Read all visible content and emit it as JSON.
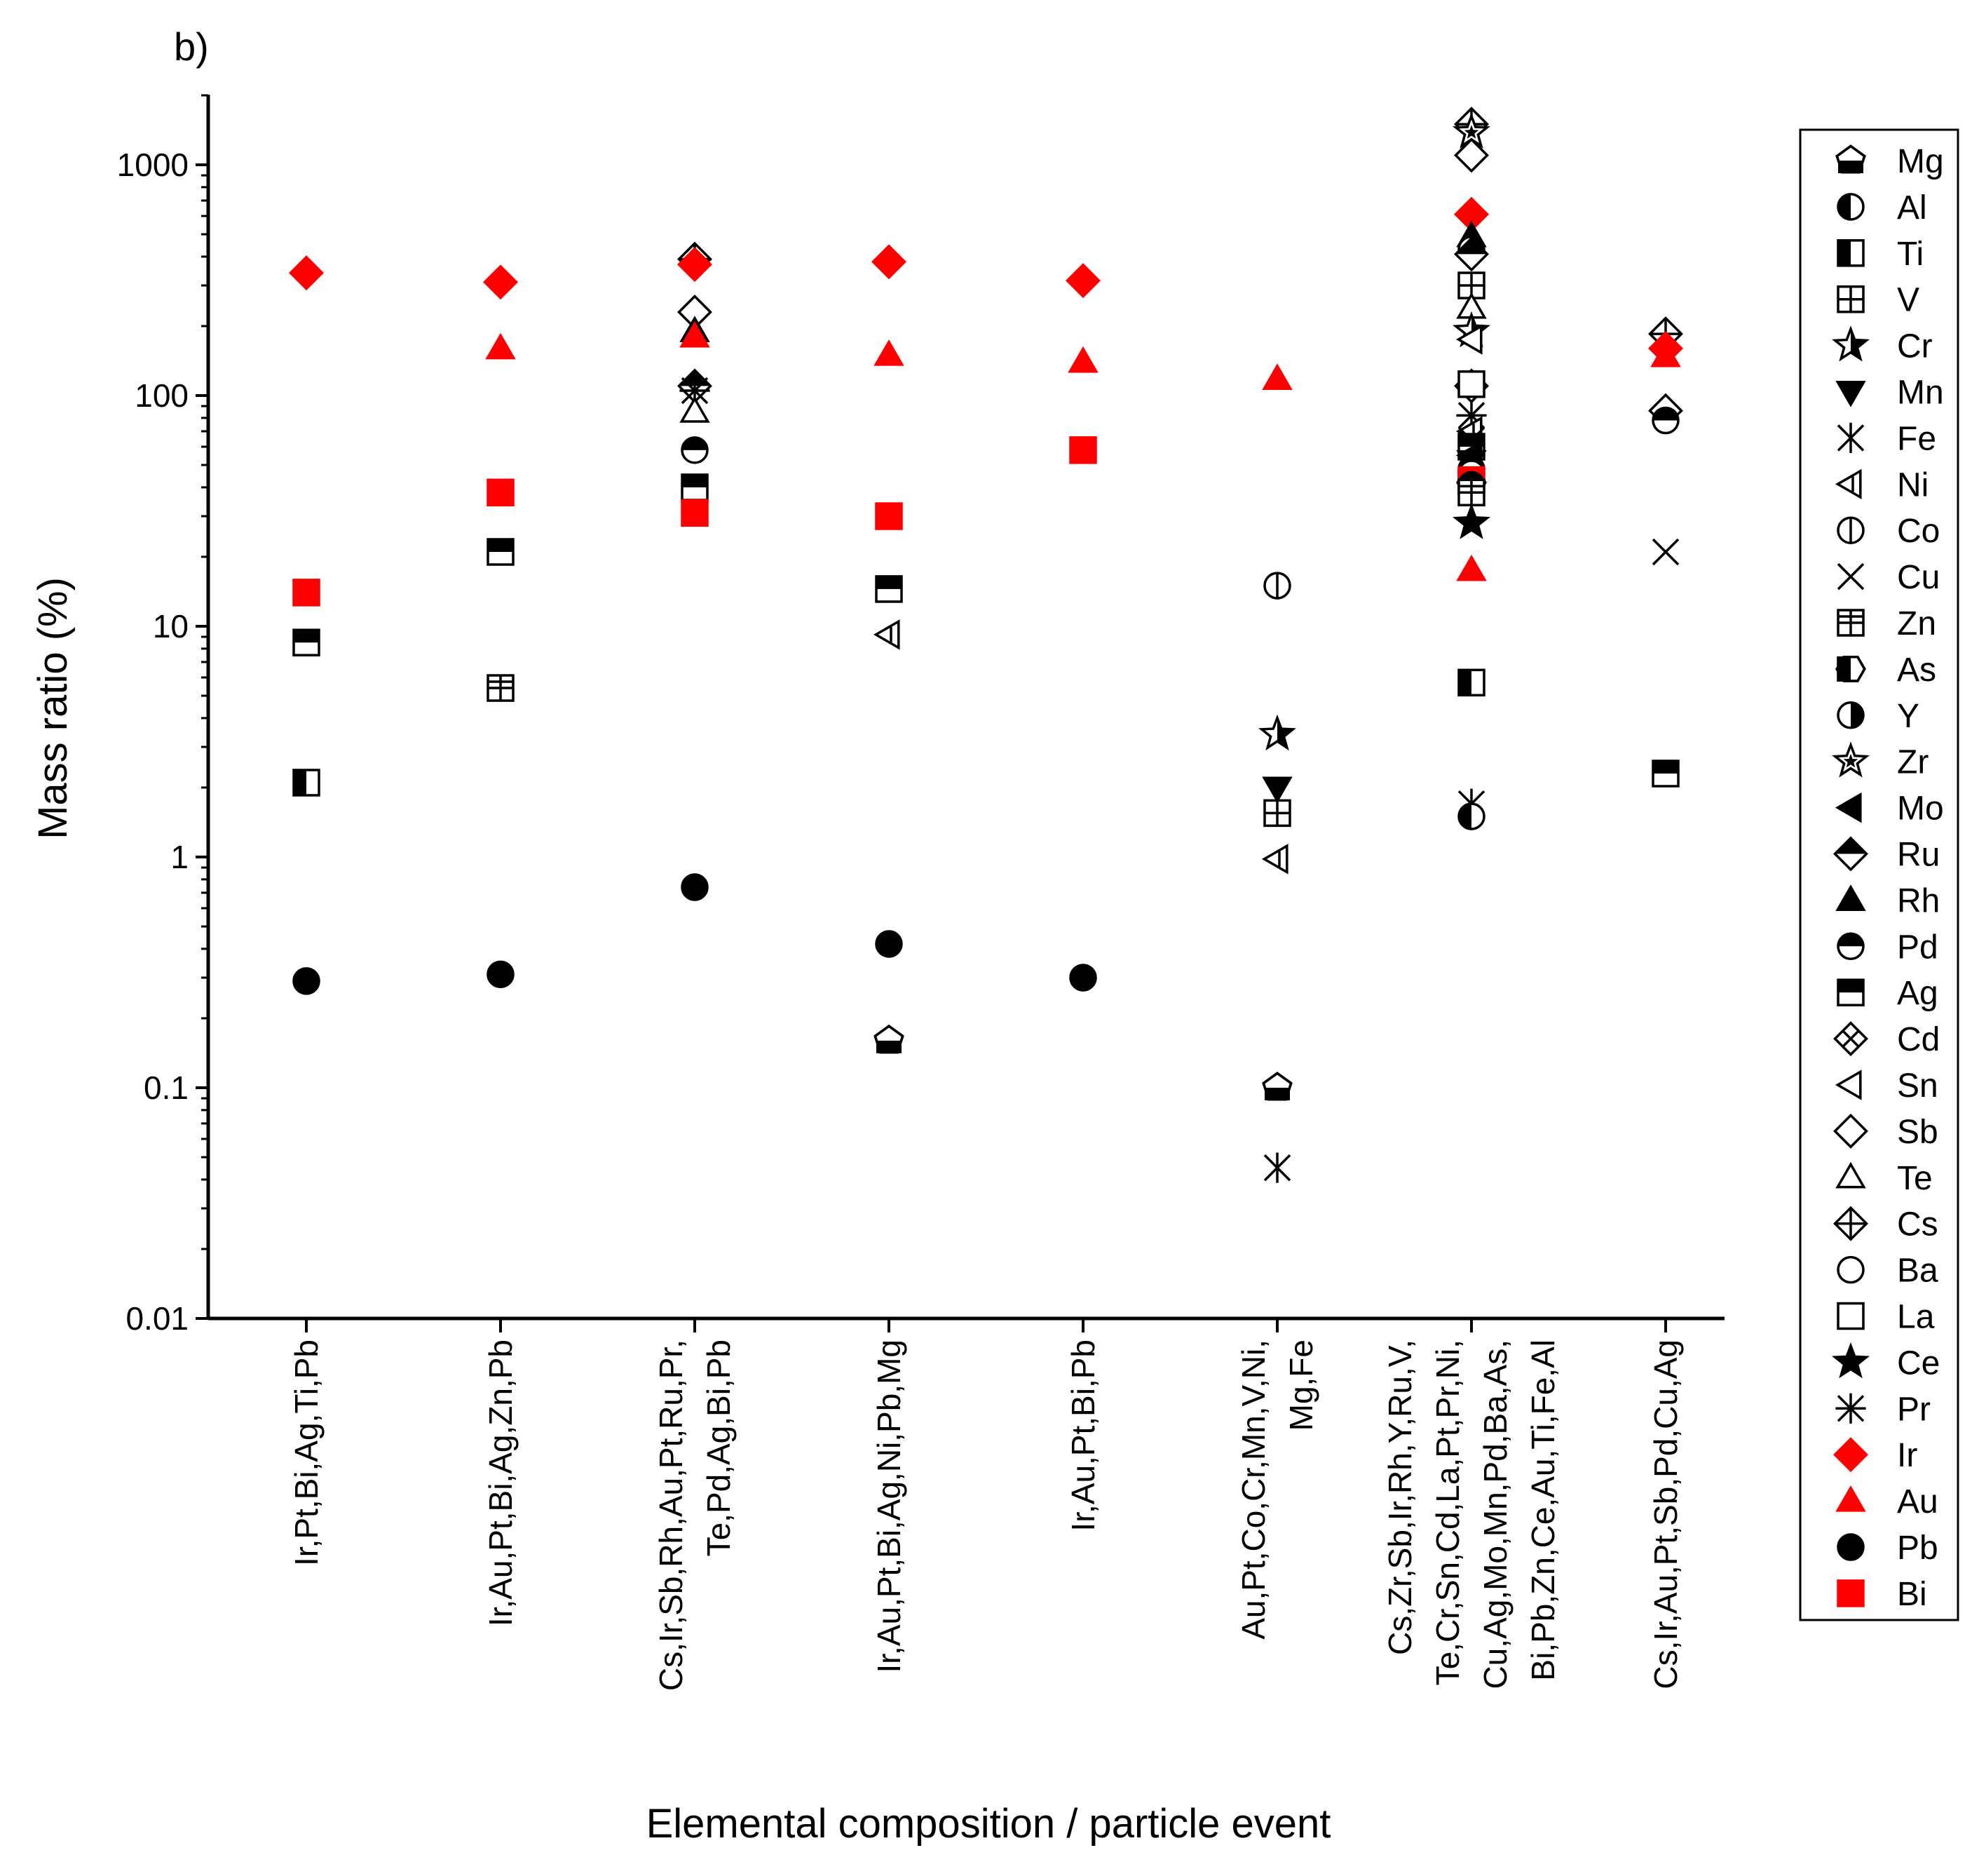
{
  "chart_data": {
    "type": "scatter",
    "panel_label": "b)",
    "xlabel": "Elemental composition / particle event",
    "ylabel": "Mass ratio (%)",
    "yscale": "log",
    "ylim": [
      0.01,
      2000
    ],
    "y_ticks": [
      {
        "value": 0.01,
        "label": "0.01"
      },
      {
        "value": 0.1,
        "label": "0.1"
      },
      {
        "value": 1,
        "label": "1"
      },
      {
        "value": 10,
        "label": "10"
      },
      {
        "value": 100,
        "label": "100"
      },
      {
        "value": 1000,
        "label": "1000"
      }
    ],
    "categories": [
      [
        "Ir,Pt,Bi,Ag,Ti,Pb"
      ],
      [
        "Ir,Au,Pt,Bi,Ag,Zn,Pb"
      ],
      [
        "Cs,Ir,Sb,Rh,Au,Pt,Ru,Pr,",
        "Te,Pd,Ag,Bi,Pb"
      ],
      [
        "Ir,Au,Pt,Bi,Ag,Ni,Pb,Mg"
      ],
      [
        "Ir,Au,Pt,Bi,Pb"
      ],
      [
        "Au,Pt,Co,Cr,Mn,V,Ni,",
        "Mg,Fe"
      ],
      [
        "Cs,Zr,Sb,Ir,Rh,Y,Ru,V,",
        "Te,Cr,Sn,Cd,La,Pt,Pr,Ni,",
        "Cu,Ag,Mo,Mn,Pd,Ba,As,",
        "Bi,Pb,Zn,Ce,Au,Ti,Fe,Al"
      ],
      [
        "Cs,Ir,Au,Pt,Sb,Pd,Cu,Ag"
      ]
    ],
    "legend": [
      {
        "name": "Mg",
        "marker": "pentagon-bottom-half",
        "color": "#000000"
      },
      {
        "name": "Al",
        "marker": "circle-left-half",
        "color": "#000000"
      },
      {
        "name": "Ti",
        "marker": "square-left-half",
        "color": "#000000"
      },
      {
        "name": "V",
        "marker": "square-cross",
        "color": "#000000"
      },
      {
        "name": "Cr",
        "marker": "star-half",
        "color": "#000000"
      },
      {
        "name": "Mn",
        "marker": "triangle-down",
        "color": "#000000"
      },
      {
        "name": "Fe",
        "marker": "asterisk",
        "color": "#000000"
      },
      {
        "name": "Ni",
        "marker": "triangle-left-line",
        "color": "#000000"
      },
      {
        "name": "Co",
        "marker": "circle-vline",
        "color": "#000000"
      },
      {
        "name": "Cu",
        "marker": "x",
        "color": "#000000"
      },
      {
        "name": "Zn",
        "marker": "square-plus",
        "color": "#000000"
      },
      {
        "name": "As",
        "marker": "hexagon-left-half",
        "color": "#000000"
      },
      {
        "name": "Y",
        "marker": "circle-right-half",
        "color": "#000000"
      },
      {
        "name": "Zr",
        "marker": "star-outline",
        "color": "#000000"
      },
      {
        "name": "Mo",
        "marker": "triangle-left-filled",
        "color": "#000000"
      },
      {
        "name": "Ru",
        "marker": "diamond-top-half",
        "color": "#000000"
      },
      {
        "name": "Rh",
        "marker": "triangle-up-filled",
        "color": "#000000"
      },
      {
        "name": "Pd",
        "marker": "circle-top-half",
        "color": "#000000"
      },
      {
        "name": "Ag",
        "marker": "square-top-half",
        "color": "#000000"
      },
      {
        "name": "Cd",
        "marker": "diamond-x",
        "color": "#000000"
      },
      {
        "name": "Sn",
        "marker": "triangle-left-open",
        "color": "#000000"
      },
      {
        "name": "Sb",
        "marker": "diamond-open",
        "color": "#000000"
      },
      {
        "name": "Te",
        "marker": "triangle-up-open",
        "color": "#000000"
      },
      {
        "name": "Cs",
        "marker": "diamond-plus",
        "color": "#000000"
      },
      {
        "name": "Ba",
        "marker": "circle-open",
        "color": "#000000"
      },
      {
        "name": "La",
        "marker": "square-open",
        "color": "#000000"
      },
      {
        "name": "Ce",
        "marker": "star-filled",
        "color": "#000000"
      },
      {
        "name": "Pr",
        "marker": "asterisk-x",
        "color": "#000000"
      },
      {
        "name": "Ir",
        "marker": "diamond-filled",
        "color": "#ff0000"
      },
      {
        "name": "Au",
        "marker": "triangle-up-filled",
        "color": "#ff0000"
      },
      {
        "name": "Pb",
        "marker": "circle-filled",
        "color": "#000000"
      },
      {
        "name": "Bi",
        "marker": "square-filled",
        "color": "#ff0000"
      }
    ],
    "points": [
      {
        "event": 0,
        "element": "Ir",
        "value": 340
      },
      {
        "event": 0,
        "element": "Bi",
        "value": 14
      },
      {
        "event": 0,
        "element": "Ag",
        "value": 8.5
      },
      {
        "event": 0,
        "element": "Ti",
        "value": 2.1
      },
      {
        "event": 0,
        "element": "Pb",
        "value": 0.29
      },
      {
        "event": 1,
        "element": "Ir",
        "value": 310
      },
      {
        "event": 1,
        "element": "Au",
        "value": 160
      },
      {
        "event": 1,
        "element": "Bi",
        "value": 38
      },
      {
        "event": 1,
        "element": "Ag",
        "value": 21
      },
      {
        "event": 1,
        "element": "Zn",
        "value": 5.4
      },
      {
        "event": 1,
        "element": "Pb",
        "value": 0.31
      },
      {
        "event": 2,
        "element": "Cs",
        "value": 390
      },
      {
        "event": 2,
        "element": "Ir",
        "value": 370
      },
      {
        "event": 2,
        "element": "Sb",
        "value": 230
      },
      {
        "event": 2,
        "element": "Rh",
        "value": 190
      },
      {
        "event": 2,
        "element": "Au",
        "value": 180
      },
      {
        "event": 2,
        "element": "Ru",
        "value": 110
      },
      {
        "event": 2,
        "element": "Pr",
        "value": 105
      },
      {
        "event": 2,
        "element": "Te",
        "value": 85
      },
      {
        "event": 2,
        "element": "Pd",
        "value": 58
      },
      {
        "event": 2,
        "element": "Ag",
        "value": 40
      },
      {
        "event": 2,
        "element": "Bi",
        "value": 31
      },
      {
        "event": 2,
        "element": "Pb",
        "value": 0.74
      },
      {
        "event": 3,
        "element": "Ir",
        "value": 380
      },
      {
        "event": 3,
        "element": "Au",
        "value": 150
      },
      {
        "event": 3,
        "element": "Bi",
        "value": 30
      },
      {
        "event": 3,
        "element": "Ag",
        "value": 14.5
      },
      {
        "event": 3,
        "element": "Ni",
        "value": 9.2
      },
      {
        "event": 3,
        "element": "Pb",
        "value": 0.42
      },
      {
        "event": 3,
        "element": "Mg",
        "value": 0.16
      },
      {
        "event": 4,
        "element": "Ir",
        "value": 315
      },
      {
        "event": 4,
        "element": "Au",
        "value": 140
      },
      {
        "event": 4,
        "element": "Bi",
        "value": 58
      },
      {
        "event": 4,
        "element": "Pb",
        "value": 0.3
      },
      {
        "event": 5,
        "element": "Au",
        "value": 118
      },
      {
        "event": 5,
        "element": "Co",
        "value": 15
      },
      {
        "event": 5,
        "element": "Cr",
        "value": 3.4
      },
      {
        "event": 5,
        "element": "Mn",
        "value": 2.0
      },
      {
        "event": 5,
        "element": "V",
        "value": 1.55
      },
      {
        "event": 5,
        "element": "Ni",
        "value": 0.98
      },
      {
        "event": 5,
        "element": "Mg",
        "value": 0.1
      },
      {
        "event": 5,
        "element": "Fe",
        "value": 0.045
      },
      {
        "event": 6,
        "element": "Cs",
        "value": 1500
      },
      {
        "event": 6,
        "element": "Zr",
        "value": 1380
      },
      {
        "event": 6,
        "element": "Sb",
        "value": 1100
      },
      {
        "event": 6,
        "element": "Ir",
        "value": 610
      },
      {
        "event": 6,
        "element": "Rh",
        "value": 490
      },
      {
        "event": 6,
        "element": "Y",
        "value": 430
      },
      {
        "event": 6,
        "element": "Ru",
        "value": 410
      },
      {
        "event": 6,
        "element": "V",
        "value": 300
      },
      {
        "event": 6,
        "element": "Te",
        "value": 240
      },
      {
        "event": 6,
        "element": "Cr",
        "value": 190
      },
      {
        "event": 6,
        "element": "Sn",
        "value": 175
      },
      {
        "event": 6,
        "element": "Cd",
        "value": 110
      },
      {
        "event": 6,
        "element": "La",
        "value": 112
      },
      {
        "event": 6,
        "element": "Pr",
        "value": 82
      },
      {
        "event": 6,
        "element": "Ni",
        "value": 70
      },
      {
        "event": 6,
        "element": "Cu",
        "value": 64
      },
      {
        "event": 6,
        "element": "Ag",
        "value": 60
      },
      {
        "event": 6,
        "element": "Mo",
        "value": 55
      },
      {
        "event": 6,
        "element": "Mn",
        "value": 52
      },
      {
        "event": 6,
        "element": "Pd",
        "value": 48
      },
      {
        "event": 6,
        "element": "Ba",
        "value": 46
      },
      {
        "event": 6,
        "element": "As",
        "value": 42
      },
      {
        "event": 6,
        "element": "Bi",
        "value": 43
      },
      {
        "event": 6,
        "element": "Pb",
        "value": 41
      },
      {
        "event": 6,
        "element": "Zn",
        "value": 38
      },
      {
        "event": 6,
        "element": "Ce",
        "value": 28
      },
      {
        "event": 6,
        "element": "Au",
        "value": 17.5
      },
      {
        "event": 6,
        "element": "Ti",
        "value": 5.7
      },
      {
        "event": 6,
        "element": "Fe",
        "value": 1.7
      },
      {
        "event": 6,
        "element": "Al",
        "value": 1.5
      },
      {
        "event": 7,
        "element": "Cs",
        "value": 185
      },
      {
        "event": 7,
        "element": "Ir",
        "value": 160
      },
      {
        "event": 7,
        "element": "Au",
        "value": 148
      },
      {
        "event": 7,
        "element": "Sb",
        "value": 86
      },
      {
        "event": 7,
        "element": "Pd",
        "value": 78
      },
      {
        "event": 7,
        "element": "Cu",
        "value": 21
      },
      {
        "event": 7,
        "element": "Ag",
        "value": 2.3
      }
    ]
  }
}
